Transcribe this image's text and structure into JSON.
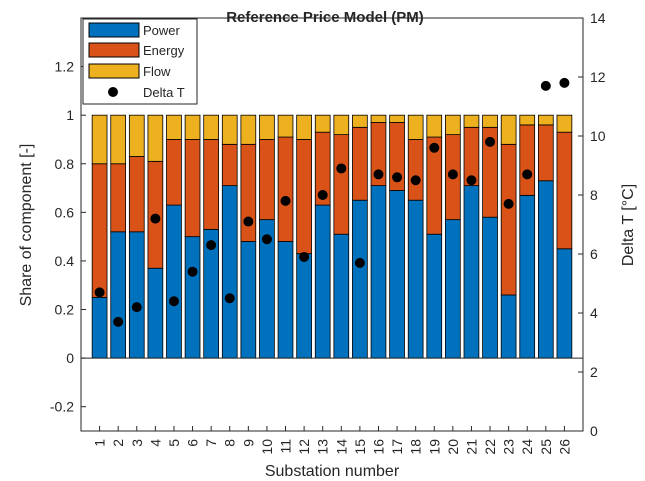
{
  "chart_data": {
    "type": "bar",
    "stacked": true,
    "title": "Reference Price Model (PM)",
    "xlabel": "Substation number",
    "ylabel": "Share of component [-]",
    "y2label": "Delta T [°C]",
    "ylim": [
      -0.3,
      1.4
    ],
    "y2lim": [
      0,
      14
    ],
    "yticks": [
      -0.2,
      0,
      0.2,
      0.4,
      0.6,
      0.8,
      1,
      1.2
    ],
    "y2ticks": [
      0,
      2,
      4,
      6,
      8,
      10,
      12,
      14
    ],
    "legend_position": "top-left",
    "colors": {
      "Power": "#0072BD",
      "Energy": "#D95319",
      "Flow": "#EDB120",
      "Delta T": "#000000"
    },
    "categories": [
      "1",
      "2",
      "3",
      "4",
      "5",
      "6",
      "7",
      "8",
      "9",
      "10",
      "11",
      "12",
      "13",
      "14",
      "15",
      "16",
      "17",
      "18",
      "19",
      "20",
      "21",
      "22",
      "23",
      "24",
      "25",
      "26"
    ],
    "series": [
      {
        "name": "Power",
        "axis": "left",
        "values": [
          0.25,
          0.52,
          0.52,
          0.37,
          0.63,
          0.5,
          0.53,
          0.71,
          0.48,
          0.57,
          0.48,
          0.43,
          0.63,
          0.51,
          0.65,
          0.71,
          0.69,
          0.65,
          0.51,
          0.57,
          0.71,
          0.58,
          0.26,
          0.67,
          0.73,
          0.45
        ]
      },
      {
        "name": "Energy",
        "axis": "left",
        "values": [
          0.55,
          0.28,
          0.31,
          0.44,
          0.27,
          0.4,
          0.37,
          0.17,
          0.4,
          0.33,
          0.43,
          0.47,
          0.3,
          0.41,
          0.3,
          0.26,
          0.28,
          0.25,
          0.4,
          0.35,
          0.24,
          0.37,
          0.62,
          0.29,
          0.23,
          0.48
        ]
      },
      {
        "name": "Flow",
        "axis": "left",
        "values": [
          0.2,
          0.2,
          0.17,
          0.19,
          0.1,
          0.1,
          0.1,
          0.12,
          0.12,
          0.1,
          0.09,
          0.1,
          0.07,
          0.08,
          0.05,
          0.03,
          0.03,
          0.1,
          0.09,
          0.08,
          0.05,
          0.05,
          0.12,
          0.04,
          0.04,
          0.07
        ]
      },
      {
        "name": "Delta T",
        "axis": "right",
        "type": "scatter",
        "values": [
          4.7,
          3.7,
          4.2,
          7.2,
          4.4,
          5.4,
          6.3,
          4.5,
          7.1,
          6.5,
          7.8,
          5.9,
          8.0,
          8.9,
          5.7,
          8.7,
          8.6,
          8.5,
          9.6,
          8.7,
          8.5,
          9.8,
          7.7,
          8.7,
          11.7,
          11.8
        ]
      }
    ]
  }
}
